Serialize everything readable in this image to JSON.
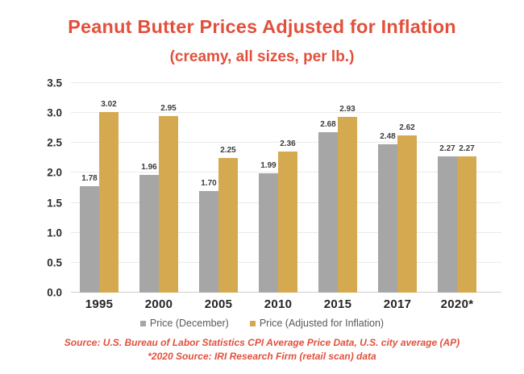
{
  "title": "Peanut Butter Prices Adjusted for Inflation",
  "subtitle": "(creamy, all sizes, per lb.)",
  "colors": {
    "accent_red": "#e2503c",
    "bar_gray": "#a6a6a6",
    "bar_gold": "#d5a950",
    "grid": "#eaeaea",
    "axis_text": "#2d2d2d",
    "legend_text": "#595959"
  },
  "chart_data": {
    "type": "bar",
    "categories": [
      "1995",
      "2000",
      "2005",
      "2010",
      "2015",
      "2017",
      "2020*"
    ],
    "series": [
      {
        "name": "Price (December)",
        "color_key": "bar_gray",
        "values": [
          1.78,
          1.96,
          1.7,
          1.99,
          2.68,
          2.48,
          2.27
        ]
      },
      {
        "name": "Price (Adjusted for Inflation)",
        "color_key": "bar_gold",
        "values": [
          3.02,
          2.95,
          2.25,
          2.36,
          2.93,
          2.62,
          2.27
        ]
      }
    ],
    "title": "Peanut Butter Prices Adjusted for Inflation",
    "xlabel": "",
    "ylabel": "",
    "ylim": [
      0,
      3.5
    ],
    "ytick_step": 0.5,
    "yticks": [
      "0.0",
      "0.5",
      "1.0",
      "1.5",
      "2.0",
      "2.5",
      "3.0",
      "3.5"
    ],
    "grid": true,
    "legend_position": "bottom",
    "value_labels_shown": true
  },
  "source": {
    "line1": "Source: U.S. Bureau of Labor Statistics CPI Average Price Data, U.S. city average (AP)",
    "line2": "*2020 Source: IRI Research Firm (retail scan) data"
  }
}
